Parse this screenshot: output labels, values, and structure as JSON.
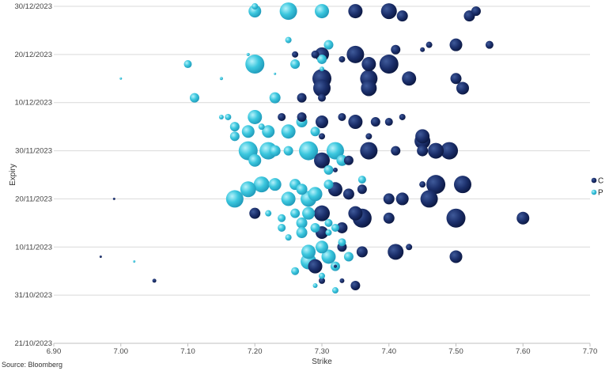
{
  "chart_data": {
    "type": "scatter",
    "subtype": "bubble",
    "xlabel": "Strike",
    "ylabel": "Expiry",
    "xlim": [
      6.9,
      7.7
    ],
    "x_ticks": [
      "6.90",
      "7.00",
      "7.10",
      "7.20",
      "7.30",
      "7.40",
      "7.50",
      "7.60",
      "7.70"
    ],
    "ylim": [
      "2023-10-21",
      "2023-12-30"
    ],
    "y_ticks": [
      "21/10/2023",
      "31/10/2023",
      "10/11/2023",
      "20/11/2023",
      "30/11/2023",
      "10/12/2023",
      "20/12/2023",
      "30/12/2023"
    ],
    "grid": "horizontal",
    "legend_position": "right",
    "series": [
      {
        "name": "C",
        "color": "#13255a",
        "points": [
          [
            7.35,
            "2023-12-29",
            9
          ],
          [
            7.4,
            "2023-12-29",
            10
          ],
          [
            7.42,
            "2023-12-28",
            7
          ],
          [
            7.53,
            "2023-12-29",
            6
          ],
          [
            7.52,
            "2023-12-28",
            7
          ],
          [
            7.46,
            "2023-12-22",
            4
          ],
          [
            7.45,
            "2023-12-21",
            3
          ],
          [
            7.5,
            "2023-12-22",
            8
          ],
          [
            7.55,
            "2023-12-22",
            5
          ],
          [
            7.3,
            "2023-12-20",
            9
          ],
          [
            7.35,
            "2023-12-20",
            11
          ],
          [
            7.37,
            "2023-12-18",
            9
          ],
          [
            7.4,
            "2023-12-18",
            12
          ],
          [
            7.41,
            "2023-12-21",
            6
          ],
          [
            7.33,
            "2023-12-19",
            4
          ],
          [
            7.29,
            "2023-12-20",
            5
          ],
          [
            7.26,
            "2023-12-20",
            4
          ],
          [
            7.3,
            "2023-12-15",
            12
          ],
          [
            7.3,
            "2023-12-13",
            11
          ],
          [
            7.37,
            "2023-12-15",
            11
          ],
          [
            7.37,
            "2023-12-13",
            10
          ],
          [
            7.43,
            "2023-12-15",
            9
          ],
          [
            7.5,
            "2023-12-15",
            7
          ],
          [
            7.51,
            "2023-12-13",
            8
          ],
          [
            7.27,
            "2023-12-11",
            6
          ],
          [
            7.3,
            "2023-12-11",
            5
          ],
          [
            7.24,
            "2023-12-07",
            5
          ],
          [
            7.27,
            "2023-12-07",
            6
          ],
          [
            7.3,
            "2023-12-06",
            8
          ],
          [
            7.33,
            "2023-12-07",
            5
          ],
          [
            7.35,
            "2023-12-06",
            9
          ],
          [
            7.38,
            "2023-12-06",
            6
          ],
          [
            7.4,
            "2023-12-06",
            5
          ],
          [
            7.42,
            "2023-12-07",
            4
          ],
          [
            7.45,
            "2023-12-03",
            9
          ],
          [
            7.45,
            "2023-12-02",
            10
          ],
          [
            7.47,
            "2023-11-30",
            10
          ],
          [
            7.49,
            "2023-11-30",
            11
          ],
          [
            7.37,
            "2023-12-03",
            4
          ],
          [
            7.3,
            "2023-12-03",
            4
          ],
          [
            7.3,
            "2023-11-28",
            10
          ],
          [
            7.37,
            "2023-11-30",
            11
          ],
          [
            7.45,
            "2023-11-30",
            7
          ],
          [
            7.34,
            "2023-11-28",
            6
          ],
          [
            7.32,
            "2023-11-26",
            3
          ],
          [
            7.41,
            "2023-11-30",
            6
          ],
          [
            7.47,
            "2023-11-23",
            12
          ],
          [
            7.51,
            "2023-11-23",
            11
          ],
          [
            7.45,
            "2023-11-23",
            4
          ],
          [
            7.32,
            "2023-11-22",
            9
          ],
          [
            7.36,
            "2023-11-22",
            6
          ],
          [
            7.42,
            "2023-11-20",
            8
          ],
          [
            7.46,
            "2023-11-20",
            11
          ],
          [
            7.4,
            "2023-11-20",
            7
          ],
          [
            7.34,
            "2023-11-21",
            7
          ],
          [
            7.2,
            "2023-11-17",
            7
          ],
          [
            7.3,
            "2023-11-17",
            10
          ],
          [
            7.35,
            "2023-11-17",
            9
          ],
          [
            7.36,
            "2023-11-16",
            12
          ],
          [
            7.4,
            "2023-11-16",
            7
          ],
          [
            7.5,
            "2023-11-16",
            12
          ],
          [
            7.6,
            "2023-11-16",
            8
          ],
          [
            7.33,
            "2023-11-14",
            7
          ],
          [
            7.3,
            "2023-11-13",
            8
          ],
          [
            7.33,
            "2023-11-10",
            6
          ],
          [
            7.36,
            "2023-11-09",
            7
          ],
          [
            7.41,
            "2023-11-09",
            10
          ],
          [
            7.43,
            "2023-11-10",
            4
          ],
          [
            7.5,
            "2023-11-08",
            8
          ],
          [
            7.29,
            "2023-11-06",
            9
          ],
          [
            7.3,
            "2023-11-03",
            4
          ],
          [
            7.33,
            "2023-11-03",
            3
          ],
          [
            7.35,
            "2023-11-02",
            6
          ],
          [
            7.32,
            "2023-11-06",
            2
          ],
          [
            6.97,
            "2023-11-08",
            1.5
          ],
          [
            6.99,
            "2023-11-20",
            1.5
          ],
          [
            7.05,
            "2023-11-03",
            2.5
          ]
        ]
      },
      {
        "name": "P",
        "color": "#2fc1da",
        "points": [
          [
            7.2,
            "2023-12-29",
            8
          ],
          [
            7.25,
            "2023-12-29",
            11
          ],
          [
            7.3,
            "2023-12-29",
            9
          ],
          [
            7.2,
            "2023-12-30",
            4
          ],
          [
            7.1,
            "2023-12-18",
            5
          ],
          [
            7.19,
            "2023-12-20",
            2
          ],
          [
            7.2,
            "2023-12-18",
            12
          ],
          [
            7.25,
            "2023-12-23",
            4
          ],
          [
            7.26,
            "2023-12-18",
            6
          ],
          [
            7.3,
            "2023-12-19",
            6
          ],
          [
            7.31,
            "2023-12-22",
            6
          ],
          [
            7.3,
            "2023-12-17",
            3
          ],
          [
            7.0,
            "2023-12-15",
            1.5
          ],
          [
            7.15,
            "2023-12-15",
            2
          ],
          [
            7.23,
            "2023-12-16",
            1.5
          ],
          [
            7.11,
            "2023-12-11",
            6
          ],
          [
            7.23,
            "2023-12-11",
            7
          ],
          [
            7.16,
            "2023-12-07",
            4
          ],
          [
            7.17,
            "2023-12-05",
            6
          ],
          [
            7.2,
            "2023-12-07",
            9
          ],
          [
            7.19,
            "2023-12-04",
            8
          ],
          [
            7.22,
            "2023-12-04",
            8
          ],
          [
            7.25,
            "2023-12-04",
            9
          ],
          [
            7.27,
            "2023-12-06",
            7
          ],
          [
            7.29,
            "2023-12-04",
            6
          ],
          [
            7.15,
            "2023-12-07",
            3
          ],
          [
            7.17,
            "2023-12-03",
            6
          ],
          [
            7.21,
            "2023-12-05",
            4
          ],
          [
            7.19,
            "2023-11-30",
            12
          ],
          [
            7.22,
            "2023-11-30",
            11
          ],
          [
            7.2,
            "2023-11-28",
            8
          ],
          [
            7.23,
            "2023-11-30",
            7
          ],
          [
            7.25,
            "2023-11-30",
            6
          ],
          [
            7.28,
            "2023-11-30",
            12
          ],
          [
            7.32,
            "2023-11-30",
            11
          ],
          [
            7.33,
            "2023-11-28",
            7
          ],
          [
            7.31,
            "2023-11-26",
            6
          ],
          [
            7.21,
            "2023-11-23",
            10
          ],
          [
            7.19,
            "2023-11-22",
            10
          ],
          [
            7.17,
            "2023-11-20",
            11
          ],
          [
            7.23,
            "2023-11-23",
            8
          ],
          [
            7.26,
            "2023-11-23",
            7
          ],
          [
            7.25,
            "2023-11-20",
            9
          ],
          [
            7.28,
            "2023-11-20",
            10
          ],
          [
            7.27,
            "2023-11-22",
            7
          ],
          [
            7.29,
            "2023-11-21",
            9
          ],
          [
            7.31,
            "2023-11-23",
            6
          ],
          [
            7.22,
            "2023-11-17",
            4
          ],
          [
            7.24,
            "2023-11-16",
            5
          ],
          [
            7.26,
            "2023-11-17",
            6
          ],
          [
            7.27,
            "2023-11-15",
            7
          ],
          [
            7.28,
            "2023-11-17",
            8
          ],
          [
            7.24,
            "2023-11-14",
            5
          ],
          [
            7.27,
            "2023-11-13",
            7
          ],
          [
            7.29,
            "2023-11-14",
            6
          ],
          [
            7.31,
            "2023-11-15",
            5
          ],
          [
            7.25,
            "2023-11-12",
            4
          ],
          [
            7.28,
            "2023-11-09",
            9
          ],
          [
            7.3,
            "2023-11-10",
            8
          ],
          [
            7.28,
            "2023-11-07",
            10
          ],
          [
            7.31,
            "2023-11-08",
            9
          ],
          [
            7.32,
            "2023-11-06",
            6
          ],
          [
            7.34,
            "2023-11-08",
            6
          ],
          [
            7.26,
            "2023-11-05",
            5
          ],
          [
            7.33,
            "2023-11-11",
            5
          ],
          [
            7.31,
            "2023-11-13",
            4
          ],
          [
            7.32,
            "2023-11-14",
            5
          ],
          [
            7.36,
            "2023-11-24",
            5
          ],
          [
            7.3,
            "2023-11-04",
            4
          ],
          [
            7.32,
            "2023-11-01",
            4
          ],
          [
            7.02,
            "2023-11-07",
            1.5
          ],
          [
            7.29,
            "2023-11-02",
            3
          ]
        ]
      }
    ]
  },
  "legend": [
    {
      "label": "C",
      "color": "#13255a"
    },
    {
      "label": "P",
      "color": "#2fc1da"
    }
  ],
  "source": "Source: Bloomberg"
}
